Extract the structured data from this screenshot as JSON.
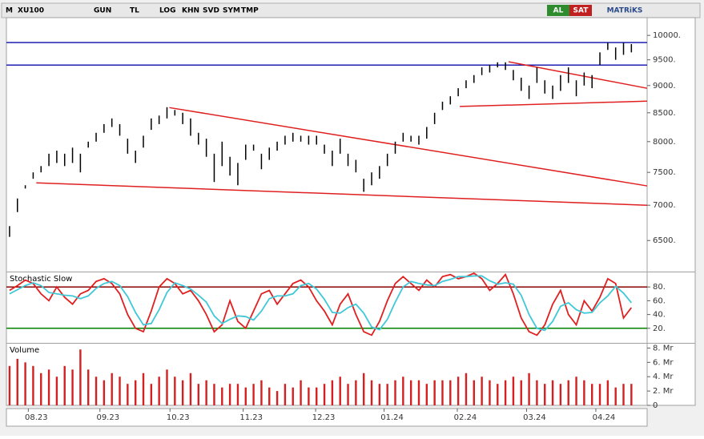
{
  "toolbar": {
    "items": [
      "M",
      "XU100",
      "GUN",
      "TL",
      "LOG",
      "KHN",
      "SVD",
      "SYM",
      "TMP"
    ],
    "buy": "AL",
    "sell": "SAT",
    "brand": "MATRiKS"
  },
  "chart_data": [
    {
      "type": "hilo",
      "title": "XU100",
      "color": "#000000",
      "log": true,
      "xlim": [
        -0.4,
        81
      ],
      "ylim": [
        6100,
        10380
      ],
      "yticks": [
        {
          "value": 6500,
          "label": "6500."
        },
        {
          "value": 7000,
          "label": "7000."
        },
        {
          "value": 7500,
          "label": "7500."
        },
        {
          "value": 8000,
          "label": "8000."
        },
        {
          "value": 8500,
          "label": "8500."
        },
        {
          "value": 9000,
          "label": "9000."
        },
        {
          "value": 9500,
          "label": "9500."
        },
        {
          "value": 10000,
          "label": "10000."
        }
      ],
      "high": [
        6700,
        7100,
        7300,
        7500,
        7600,
        7800,
        7850,
        7800,
        7900,
        7800,
        8000,
        8150,
        8300,
        8400,
        8300,
        8050,
        7850,
        8100,
        8400,
        8450,
        8600,
        8550,
        8500,
        8400,
        8150,
        8050,
        7800,
        8000,
        7750,
        7650,
        7950,
        7950,
        7800,
        7900,
        8000,
        8100,
        8150,
        8100,
        8100,
        8100,
        7950,
        7850,
        8050,
        7800,
        7700,
        7400,
        7500,
        7600,
        7800,
        8000,
        8150,
        8100,
        8100,
        8250,
        8500,
        8700,
        8800,
        8950,
        9100,
        9200,
        9350,
        9400,
        9450,
        9450,
        9300,
        9150,
        9000,
        9350,
        9100,
        9000,
        9200,
        9350,
        9100,
        9250,
        9200,
        9650,
        9850,
        9750,
        9850,
        9820
      ],
      "low": [
        6550,
        6900,
        7250,
        7400,
        7500,
        7600,
        7650,
        7600,
        7650,
        7500,
        7900,
        8000,
        8150,
        8250,
        8100,
        7800,
        7650,
        7900,
        8200,
        8300,
        8400,
        8450,
        8300,
        8100,
        7950,
        7750,
        7350,
        7600,
        7450,
        7300,
        7700,
        7850,
        7550,
        7700,
        7850,
        7950,
        8000,
        8000,
        7950,
        7950,
        7800,
        7600,
        7800,
        7600,
        7500,
        7200,
        7300,
        7400,
        7600,
        7800,
        8000,
        8000,
        7950,
        8050,
        8300,
        8550,
        8650,
        8800,
        8950,
        9050,
        9200,
        9250,
        9350,
        9300,
        9100,
        8900,
        8750,
        9050,
        8850,
        8750,
        8900,
        9050,
        8800,
        9000,
        8950,
        9400,
        9700,
        9500,
        9600,
        9650
      ],
      "hlines": [
        {
          "value": 9850,
          "color": "#1f1fb4"
        },
        {
          "value": 9395,
          "color": "#1f1fb4"
        }
      ],
      "trendlines": [
        {
          "x": [
            3.4,
            81
          ],
          "y": [
            7337,
            7000
          ],
          "color": "#e02020"
        },
        {
          "x": [
            20.3,
            81
          ],
          "y": [
            8593,
            7290
          ],
          "color": "#e02020"
        },
        {
          "x": [
            57.2,
            81
          ],
          "y": [
            8613,
            8710
          ],
          "color": "#e02020"
        },
        {
          "x": [
            63.4,
            81
          ],
          "y": [
            9460,
            8949
          ],
          "color": "#e02020"
        }
      ]
    },
    {
      "type": "line",
      "title": "Stochastic Slow",
      "xlim": [
        -0.4,
        81
      ],
      "ylim": [
        0,
        100
      ],
      "yticks": [
        {
          "value": 20,
          "label": "20."
        },
        {
          "value": 40,
          "label": "40."
        },
        {
          "value": 60,
          "label": "60."
        },
        {
          "value": 80,
          "label": "80."
        }
      ],
      "levels": [
        {
          "value": 80,
          "color": "#8b0000"
        },
        {
          "value": 20,
          "color": "#008000"
        }
      ],
      "series": [
        {
          "color": "#e02020",
          "values": [
            75,
            82,
            90,
            85,
            70,
            60,
            80,
            65,
            55,
            70,
            75,
            88,
            92,
            85,
            70,
            40,
            20,
            15,
            45,
            80,
            92,
            85,
            70,
            75,
            60,
            40,
            15,
            25,
            60,
            30,
            20,
            45,
            70,
            75,
            55,
            70,
            85,
            90,
            80,
            60,
            45,
            25,
            55,
            70,
            40,
            15,
            10,
            30,
            60,
            85,
            95,
            85,
            75,
            90,
            80,
            95,
            98,
            92,
            95,
            100,
            92,
            75,
            85,
            98,
            70,
            35,
            15,
            10,
            25,
            55,
            75,
            40,
            25,
            60,
            45,
            65,
            92,
            85,
            35,
            50
          ]
        },
        {
          "color": "#40c8d8",
          "values": [
            70,
            76,
            82,
            86,
            82,
            72,
            70,
            68,
            67,
            63,
            67,
            78,
            85,
            88,
            82,
            66,
            43,
            25,
            27,
            47,
            72,
            86,
            82,
            77,
            68,
            58,
            38,
            27,
            33,
            38,
            37,
            32,
            45,
            63,
            67,
            67,
            70,
            82,
            85,
            77,
            62,
            43,
            42,
            50,
            55,
            42,
            22,
            18,
            33,
            58,
            80,
            88,
            85,
            83,
            82,
            88,
            91,
            95,
            95,
            96,
            96,
            89,
            84,
            86,
            84,
            68,
            40,
            20,
            17,
            30,
            52,
            57,
            47,
            42,
            43,
            57,
            67,
            81,
            71,
            57
          ]
        }
      ]
    },
    {
      "type": "bar",
      "title": "Volume",
      "color": "#d42020",
      "xlim": [
        -0.4,
        81
      ],
      "ylim": [
        0,
        8.5
      ],
      "yticks": [
        0,
        {
          "value": 2,
          "label": "2. Mr"
        },
        {
          "value": 4,
          "label": "4. Mr"
        },
        {
          "value": 6,
          "label": "6. Mr"
        },
        {
          "value": 8,
          "label": "8. Mr"
        }
      ],
      "xticks": [
        {
          "value": 3.4,
          "label": "08.23"
        },
        {
          "value": 12.5,
          "label": "09.23"
        },
        {
          "value": 21.4,
          "label": "10.23"
        },
        {
          "value": 30.7,
          "label": "11.23"
        },
        {
          "value": 39.9,
          "label": "12.23"
        },
        {
          "value": 48.6,
          "label": "01.24"
        },
        {
          "value": 57.9,
          "label": "02.24"
        },
        {
          "value": 66.7,
          "label": "03.24"
        },
        {
          "value": 75.5,
          "label": "04.24"
        }
      ],
      "values": [
        5.5,
        6.5,
        6.0,
        5.5,
        4.5,
        5.0,
        4.0,
        5.5,
        5.0,
        7.8,
        5.0,
        4.0,
        3.5,
        4.5,
        4.0,
        3.0,
        3.5,
        4.5,
        3.0,
        4.0,
        5.0,
        4.0,
        3.5,
        4.5,
        3.0,
        3.5,
        3.0,
        2.5,
        3.0,
        3.0,
        2.5,
        3.0,
        3.5,
        2.5,
        2.0,
        3.0,
        2.5,
        3.5,
        2.5,
        2.5,
        3.0,
        3.5,
        4.0,
        3.0,
        3.5,
        4.5,
        3.5,
        3.0,
        3.0,
        3.5,
        4.0,
        3.5,
        3.5,
        3.0,
        3.5,
        3.5,
        3.5,
        4.0,
        4.5,
        3.5,
        4.0,
        3.5,
        3.0,
        3.5,
        4.0,
        3.5,
        4.5,
        3.5,
        3.0,
        3.5,
        3.0,
        3.5,
        4.0,
        3.5,
        3.0,
        3.0,
        3.5,
        2.5,
        3.0,
        3.0
      ]
    }
  ]
}
